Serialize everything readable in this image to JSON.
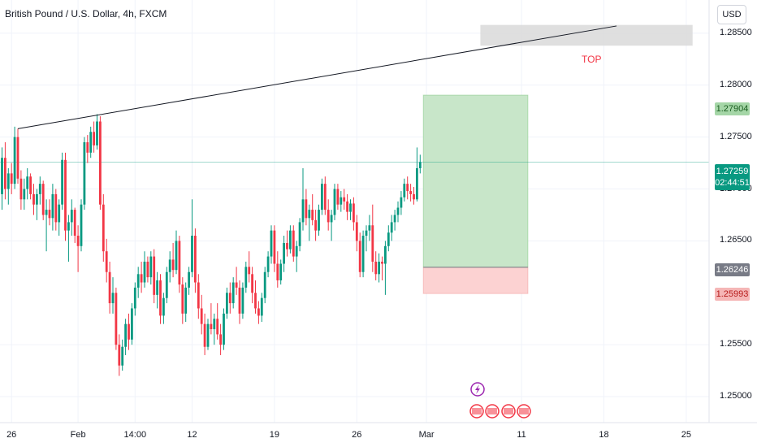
{
  "header": {
    "title": "British Pound / U.S. Dollar, 4h, FXCM",
    "currency": "USD"
  },
  "annotations": {
    "top_label": "TOP"
  },
  "price_tags": {
    "target": "1.27904",
    "last_price": "1.27259",
    "countdown": "02:44:51",
    "entry": "1.26246",
    "stop": "1.25993"
  },
  "colors": {
    "up": "#089981",
    "down": "#f23645",
    "target_zone": "#c8e6c9",
    "stop_zone": "#fcd2d2",
    "top_zone": "#d9d9d9"
  },
  "chart_data": {
    "type": "candlestick",
    "symbol": "GBPUSD",
    "timeframe": "4h",
    "ylim": [
      1.2475,
      1.2882
    ],
    "y_ticks": [
      {
        "value": 1.285,
        "label": "1.28500"
      },
      {
        "value": 1.28,
        "label": "1.28000"
      },
      {
        "value": 1.275,
        "label": "1.27500"
      },
      {
        "value": 1.27,
        "label": "1.27000"
      },
      {
        "value": 1.265,
        "label": "1.26500"
      },
      {
        "value": 1.255,
        "label": "1.25500"
      },
      {
        "value": 1.25,
        "label": "1.25000"
      }
    ],
    "x_ticks": [
      {
        "index": 3,
        "label": "26"
      },
      {
        "index": 24,
        "label": "Feb"
      },
      {
        "index": 42,
        "label": "14:00"
      },
      {
        "index": 60,
        "label": "12"
      },
      {
        "index": 86,
        "label": "19"
      },
      {
        "index": 112,
        "label": "26"
      },
      {
        "index": 134,
        "label": "Mar"
      },
      {
        "index": 164,
        "label": "11"
      },
      {
        "index": 190,
        "label": "18"
      },
      {
        "index": 216,
        "label": "25"
      }
    ],
    "candles": [
      [
        1.2695,
        1.274,
        1.268,
        1.273
      ],
      [
        1.273,
        1.2745,
        1.269,
        1.27
      ],
      [
        1.27,
        1.272,
        1.2685,
        1.2715
      ],
      [
        1.2715,
        1.2725,
        1.2695,
        1.2705
      ],
      [
        1.2705,
        1.276,
        1.27,
        1.275
      ],
      [
        1.275,
        1.2758,
        1.2705,
        1.271
      ],
      [
        1.271,
        1.2718,
        1.268,
        1.269
      ],
      [
        1.269,
        1.271,
        1.268,
        1.27
      ],
      [
        1.27,
        1.272,
        1.269,
        1.2712
      ],
      [
        1.2712,
        1.2715,
        1.269,
        1.2695
      ],
      [
        1.2695,
        1.2705,
        1.2675,
        1.2685
      ],
      [
        1.2685,
        1.27,
        1.267,
        1.2695
      ],
      [
        1.2695,
        1.2712,
        1.2685,
        1.2705
      ],
      [
        1.2705,
        1.2708,
        1.267,
        1.2675
      ],
      [
        1.2675,
        1.269,
        1.264,
        1.268
      ],
      [
        1.268,
        1.269,
        1.2665,
        1.2672
      ],
      [
        1.2672,
        1.2705,
        1.266,
        1.2695
      ],
      [
        1.2695,
        1.27,
        1.266,
        1.2668
      ],
      [
        1.2668,
        1.269,
        1.2655,
        1.2685
      ],
      [
        1.2685,
        1.2735,
        1.268,
        1.2728
      ],
      [
        1.2728,
        1.2735,
        1.265,
        1.266
      ],
      [
        1.266,
        1.2675,
        1.263,
        1.2668
      ],
      [
        1.2668,
        1.269,
        1.2655,
        1.268
      ],
      [
        1.268,
        1.2682,
        1.2648,
        1.2655
      ],
      [
        1.2655,
        1.2665,
        1.262,
        1.2645
      ],
      [
        1.2645,
        1.269,
        1.264,
        1.2685
      ],
      [
        1.2685,
        1.275,
        1.268,
        1.2745
      ],
      [
        1.2745,
        1.2752,
        1.2725,
        1.2735
      ],
      [
        1.2735,
        1.276,
        1.273,
        1.2755
      ],
      [
        1.2755,
        1.2765,
        1.2735,
        1.2742
      ],
      [
        1.2742,
        1.2772,
        1.2738,
        1.2765
      ],
      [
        1.2765,
        1.277,
        1.268,
        1.2685
      ],
      [
        1.2685,
        1.2695,
        1.263,
        1.264
      ],
      [
        1.264,
        1.2652,
        1.261,
        1.262
      ],
      [
        1.262,
        1.263,
        1.258,
        1.259
      ],
      [
        1.259,
        1.2615,
        1.258,
        1.26
      ],
      [
        1.26,
        1.2605,
        1.2545,
        1.255
      ],
      [
        1.255,
        1.256,
        1.252,
        1.253
      ],
      [
        1.253,
        1.2555,
        1.2525,
        1.2548
      ],
      [
        1.2548,
        1.2575,
        1.254,
        1.257
      ],
      [
        1.257,
        1.258,
        1.2545,
        1.2555
      ],
      [
        1.2555,
        1.259,
        1.255,
        1.2585
      ],
      [
        1.2585,
        1.261,
        1.2578,
        1.2605
      ],
      [
        1.2605,
        1.2625,
        1.2595,
        1.2618
      ],
      [
        1.2618,
        1.263,
        1.26,
        1.261
      ],
      [
        1.261,
        1.264,
        1.2605,
        1.263
      ],
      [
        1.263,
        1.2635,
        1.261,
        1.2615
      ],
      [
        1.2615,
        1.264,
        1.2608,
        1.2635
      ],
      [
        1.2635,
        1.2642,
        1.259,
        1.2598
      ],
      [
        1.2598,
        1.262,
        1.2585,
        1.2612
      ],
      [
        1.2612,
        1.2618,
        1.257,
        1.2578
      ],
      [
        1.2578,
        1.26,
        1.257,
        1.2595
      ],
      [
        1.2595,
        1.2625,
        1.259,
        1.262
      ],
      [
        1.262,
        1.264,
        1.261,
        1.2632
      ],
      [
        1.2632,
        1.2648,
        1.2615,
        1.2622
      ],
      [
        1.2622,
        1.266,
        1.2618,
        1.265
      ],
      [
        1.265,
        1.2655,
        1.26,
        1.2608
      ],
      [
        1.2608,
        1.2615,
        1.257,
        1.258
      ],
      [
        1.258,
        1.261,
        1.2572,
        1.2605
      ],
      [
        1.2605,
        1.2625,
        1.2598,
        1.262
      ],
      [
        1.262,
        1.269,
        1.2615,
        1.2655
      ],
      [
        1.2655,
        1.2662,
        1.26,
        1.261
      ],
      [
        1.261,
        1.2618,
        1.2575,
        1.2585
      ],
      [
        1.2585,
        1.2598,
        1.256,
        1.257
      ],
      [
        1.257,
        1.258,
        1.254,
        1.2548
      ],
      [
        1.2548,
        1.2575,
        1.2545,
        1.257
      ],
      [
        1.257,
        1.259,
        1.256,
        1.2565
      ],
      [
        1.2565,
        1.258,
        1.255,
        1.2575
      ],
      [
        1.2575,
        1.259,
        1.2555,
        1.256
      ],
      [
        1.256,
        1.257,
        1.254,
        1.255
      ],
      [
        1.255,
        1.2585,
        1.2545,
        1.258
      ],
      [
        1.258,
        1.2605,
        1.2575,
        1.26
      ],
      [
        1.26,
        1.261,
        1.258,
        1.259
      ],
      [
        1.259,
        1.2615,
        1.2585,
        1.261
      ],
      [
        1.261,
        1.2625,
        1.2598,
        1.2605
      ],
      [
        1.2605,
        1.2612,
        1.257,
        1.258
      ],
      [
        1.258,
        1.261,
        1.2575,
        1.2605
      ],
      [
        1.2605,
        1.263,
        1.26,
        1.2625
      ],
      [
        1.2625,
        1.264,
        1.261,
        1.2618
      ],
      [
        1.2618,
        1.2625,
        1.259,
        1.26
      ],
      [
        1.26,
        1.2612,
        1.258,
        1.2585
      ],
      [
        1.2585,
        1.2592,
        1.257,
        1.2578
      ],
      [
        1.2578,
        1.26,
        1.2572,
        1.2595
      ],
      [
        1.2595,
        1.2625,
        1.259,
        1.262
      ],
      [
        1.262,
        1.264,
        1.2615,
        1.2635
      ],
      [
        1.2635,
        1.2665,
        1.2628,
        1.266
      ],
      [
        1.266,
        1.2665,
        1.262,
        1.2628
      ],
      [
        1.2628,
        1.264,
        1.2605,
        1.2612
      ],
      [
        1.2612,
        1.2632,
        1.2608,
        1.2628
      ],
      [
        1.2628,
        1.2655,
        1.262,
        1.2648
      ],
      [
        1.2648,
        1.266,
        1.2635,
        1.2642
      ],
      [
        1.2642,
        1.2665,
        1.2638,
        1.266
      ],
      [
        1.266,
        1.2665,
        1.263,
        1.2635
      ],
      [
        1.2635,
        1.265,
        1.262,
        1.2645
      ],
      [
        1.2645,
        1.2672,
        1.264,
        1.2668
      ],
      [
        1.2668,
        1.272,
        1.266,
        1.269
      ],
      [
        1.269,
        1.27,
        1.2665,
        1.2672
      ],
      [
        1.2672,
        1.2685,
        1.265,
        1.268
      ],
      [
        1.268,
        1.2695,
        1.2665,
        1.267
      ],
      [
        1.267,
        1.268,
        1.265,
        1.266
      ],
      [
        1.266,
        1.2685,
        1.2655,
        1.268
      ],
      [
        1.268,
        1.271,
        1.2675,
        1.2705
      ],
      [
        1.2705,
        1.2712,
        1.2675,
        1.268
      ],
      [
        1.268,
        1.269,
        1.266,
        1.2668
      ],
      [
        1.2668,
        1.268,
        1.265,
        1.2675
      ],
      [
        1.2675,
        1.2705,
        1.267,
        1.27
      ],
      [
        1.27,
        1.2705,
        1.268,
        1.2685
      ],
      [
        1.2685,
        1.2698,
        1.2678,
        1.2692
      ],
      [
        1.2692,
        1.27,
        1.268,
        1.2688
      ],
      [
        1.2688,
        1.2695,
        1.267,
        1.2678
      ],
      [
        1.2678,
        1.269,
        1.267,
        1.2686
      ],
      [
        1.2686,
        1.2692,
        1.266,
        1.2668
      ],
      [
        1.2668,
        1.2675,
        1.264,
        1.265
      ],
      [
        1.265,
        1.2658,
        1.2615,
        1.262
      ],
      [
        1.262,
        1.266,
        1.2615,
        1.2655
      ],
      [
        1.2655,
        1.2665,
        1.264,
        1.266
      ],
      [
        1.266,
        1.2675,
        1.265,
        1.2665
      ],
      [
        1.2665,
        1.2685,
        1.262,
        1.263
      ],
      [
        1.263,
        1.264,
        1.2612,
        1.2618
      ],
      [
        1.2618,
        1.2638,
        1.261,
        1.263
      ],
      [
        1.263,
        1.2635,
        1.2612,
        1.2628
      ],
      [
        1.2628,
        1.265,
        1.2598,
        1.2645
      ],
      [
        1.2645,
        1.2665,
        1.264,
        1.2658
      ],
      [
        1.2658,
        1.2675,
        1.265,
        1.2668
      ],
      [
        1.2668,
        1.268,
        1.266,
        1.2675
      ],
      [
        1.2675,
        1.2688,
        1.2668,
        1.2682
      ],
      [
        1.2682,
        1.2698,
        1.2675,
        1.2692
      ],
      [
        1.2692,
        1.271,
        1.2688,
        1.2705
      ],
      [
        1.2705,
        1.2712,
        1.269,
        1.2698
      ],
      [
        1.2698,
        1.2705,
        1.2688,
        1.2695
      ],
      [
        1.2695,
        1.2702,
        1.2685,
        1.269
      ],
      [
        1.269,
        1.274,
        1.2688,
        1.272
      ],
      [
        1.272,
        1.2733,
        1.2715,
        1.2726
      ]
    ],
    "levels": {
      "last_price": 1.27259,
      "target": 1.27904,
      "entry": 1.26246,
      "stop": 1.25993
    },
    "drawings": {
      "trendline_from": {
        "index": 5,
        "price": 1.2758
      },
      "trendline_to": {
        "index": 194,
        "price": 1.2857
      },
      "top_zone": {
        "from_index": 151,
        "to_index": 218,
        "price_high": 1.2858,
        "price_low": 1.2838
      },
      "position_from_index": 133,
      "position_to_index": 166
    }
  }
}
